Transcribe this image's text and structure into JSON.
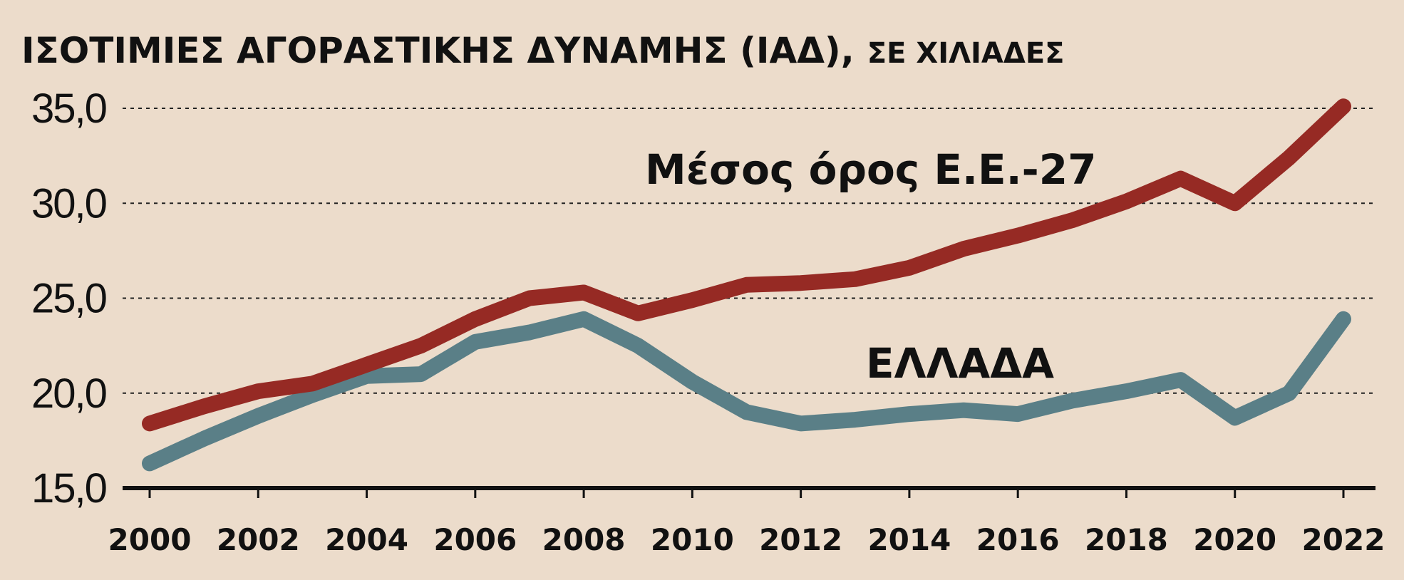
{
  "colors": {
    "background": "#ecdccb",
    "eu": "#962a24",
    "greece": "#5a7f87",
    "text": "#111111"
  },
  "chart_data": {
    "type": "line",
    "title": "ΙΣΟΤΙΜΙΕΣ ΑΓΟΡΑΣΤΙΚΗΣ ΔΥΝΑΜΗΣ (ΙΑΔ),",
    "subtitle": "ΣΕ ΧΙΛΙΑΔΕΣ",
    "xlabel": "",
    "ylabel": "",
    "ylim": [
      15,
      35
    ],
    "xlim": [
      2000,
      2022
    ],
    "grid": "horizontal dotted",
    "x_ticks": [
      "2000",
      "2002",
      "2004",
      "2006",
      "2008",
      "2010",
      "2012",
      "2014",
      "2016",
      "2018",
      "2020",
      "2022"
    ],
    "y_ticks": [
      "15,0",
      "20,0",
      "25,0",
      "30,0",
      "35,0"
    ],
    "y_tick_values": [
      15,
      20,
      25,
      30,
      35
    ],
    "x": [
      2000,
      2001,
      2002,
      2003,
      2004,
      2005,
      2006,
      2007,
      2008,
      2009,
      2010,
      2011,
      2012,
      2013,
      2014,
      2015,
      2016,
      2017,
      2018,
      2019,
      2020,
      2021,
      2022
    ],
    "series": [
      {
        "name": "Μέσος όρος Ε.Ε.-27",
        "color": "#962a24",
        "values": [
          18.4,
          19.3,
          20.1,
          20.5,
          21.5,
          22.5,
          23.9,
          25.0,
          25.3,
          24.2,
          24.9,
          25.7,
          25.8,
          26.0,
          26.6,
          27.6,
          28.3,
          29.1,
          30.1,
          31.3,
          30.0,
          32.4,
          35.1
        ]
      },
      {
        "name": "ΕΛΛΑΔΑ",
        "color": "#5a7f87",
        "values": [
          16.3,
          17.6,
          18.8,
          19.9,
          20.9,
          21.0,
          22.7,
          23.2,
          23.9,
          22.5,
          20.6,
          19.0,
          18.4,
          18.6,
          18.9,
          19.1,
          18.9,
          19.6,
          20.1,
          20.7,
          18.7,
          20.0,
          23.9
        ]
      }
    ]
  }
}
